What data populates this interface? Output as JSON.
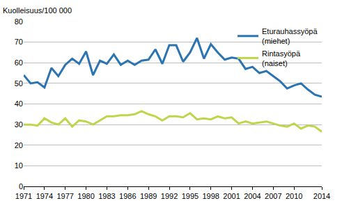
{
  "chart_data": {
    "type": "line",
    "ylabel": "Kuolleisuus/100 000",
    "x": [
      1971,
      1972,
      1973,
      1974,
      1975,
      1976,
      1977,
      1978,
      1979,
      1980,
      1981,
      1982,
      1983,
      1984,
      1985,
      1986,
      1987,
      1988,
      1989,
      1990,
      1991,
      1992,
      1993,
      1994,
      1995,
      1996,
      1997,
      1998,
      1999,
      2000,
      2001,
      2002,
      2003,
      2004,
      2005,
      2006,
      2007,
      2008,
      2009,
      2010,
      2011,
      2012,
      2013,
      2014
    ],
    "series": [
      {
        "name": "Eturauhassyöpä (miehet)",
        "color": "#2b74b1",
        "values": [
          54,
          50,
          50.5,
          48,
          57.5,
          53.5,
          59,
          62,
          59.5,
          65.5,
          54,
          61,
          59.5,
          64,
          59,
          61,
          59,
          61,
          61.5,
          66.5,
          59.5,
          68.5,
          68.5,
          60.5,
          65,
          72,
          62,
          69,
          65,
          61.5,
          62.5,
          62,
          57,
          58,
          55,
          56,
          53.5,
          51,
          47.5,
          49,
          50,
          47,
          44.5,
          43.5
        ]
      },
      {
        "name": "Rintasyöpä (naiset)",
        "color": "#bfd54b",
        "values": [
          30,
          30,
          29.5,
          33,
          31,
          30,
          33,
          29,
          32,
          31.5,
          30,
          32,
          34,
          34,
          34.5,
          34.5,
          35,
          36.5,
          35,
          34,
          32,
          34,
          34,
          33.5,
          35.5,
          32.5,
          33,
          32.5,
          34,
          33,
          33.5,
          30.5,
          31.5,
          30.5,
          31,
          31.5,
          30.5,
          29.5,
          29,
          30.5,
          28,
          29.5,
          29,
          26.5
        ]
      }
    ],
    "xlim": [
      1971,
      2014
    ],
    "xticks": [
      1971,
      1974,
      1977,
      1980,
      1983,
      1986,
      1989,
      1992,
      1995,
      1998,
      2001,
      2004,
      2007,
      2010,
      2014
    ],
    "ylim": [
      0,
      80
    ],
    "yticks": [
      0,
      10,
      20,
      30,
      40,
      50,
      60,
      70,
      80
    ],
    "grid": true,
    "legend": "upper right"
  }
}
